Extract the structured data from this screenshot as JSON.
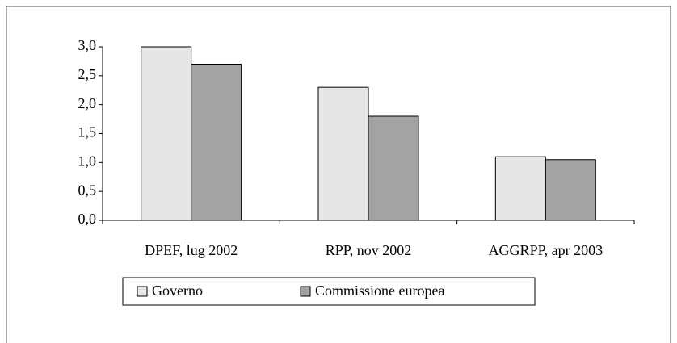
{
  "chart_data": {
    "type": "bar",
    "categories": [
      "DPEF, lug 2002",
      "RPP, nov 2002",
      "AGGRPP, apr 2003"
    ],
    "series": [
      {
        "name": "Governo",
        "color": "#e6e6e6",
        "values": [
          3.0,
          2.3,
          1.1
        ]
      },
      {
        "name": "Commissione europea",
        "color": "#a3a3a3",
        "values": [
          2.7,
          1.8,
          1.05
        ]
      }
    ],
    "ylim": [
      0,
      3
    ],
    "yticks": [
      {
        "value": 0,
        "label": "0,0"
      },
      {
        "value": 0.5,
        "label": "0,5"
      },
      {
        "value": 1,
        "label": "1,0"
      },
      {
        "value": 1.5,
        "label": "1,5"
      },
      {
        "value": 2,
        "label": "2,0"
      },
      {
        "value": 2.5,
        "label": "2,5"
      },
      {
        "value": 3,
        "label": "3,0"
      }
    ],
    "legend": "bottom"
  }
}
